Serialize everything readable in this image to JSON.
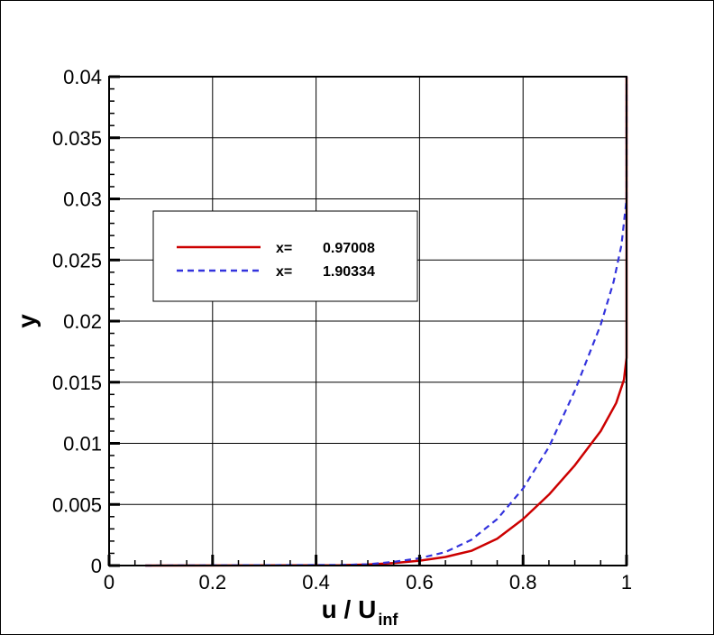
{
  "chart_data": {
    "type": "line",
    "xlabel_main": "u / U",
    "xlabel_sub": "inf",
    "ylabel": "y",
    "xlim": [
      0,
      1
    ],
    "ylim": [
      0,
      0.04
    ],
    "x_ticks": [
      "0",
      "0.2",
      "0.4",
      "0.6",
      "0.8",
      "1"
    ],
    "y_ticks": [
      "0",
      "0.005",
      "0.01",
      "0.015",
      "0.02",
      "0.025",
      "0.03",
      "0.035",
      "0.04"
    ],
    "grid": true,
    "legend_position": "upper-left",
    "series": [
      {
        "name": "x=",
        "value": "0.97008",
        "color": "#cc0000",
        "style": "solid",
        "points": [
          [
            0.07,
            0
          ],
          [
            0.45,
            3e-05
          ],
          [
            0.5,
            8e-05
          ],
          [
            0.55,
            0.0002
          ],
          [
            0.6,
            0.0004
          ],
          [
            0.65,
            0.0007
          ],
          [
            0.7,
            0.0012
          ],
          [
            0.75,
            0.0022
          ],
          [
            0.8,
            0.0038
          ],
          [
            0.85,
            0.0058
          ],
          [
            0.9,
            0.0082
          ],
          [
            0.95,
            0.011
          ],
          [
            0.98,
            0.0133
          ],
          [
            0.995,
            0.0152
          ],
          [
            1.0,
            0.017
          ],
          [
            1.0,
            0.025
          ],
          [
            1.0,
            0.04
          ]
        ]
      },
      {
        "name": "x=",
        "value": "1.90334",
        "color": "#3333dd",
        "style": "dashed",
        "points": [
          [
            0.07,
            0
          ],
          [
            0.45,
            5e-05
          ],
          [
            0.5,
            0.0001
          ],
          [
            0.55,
            0.0003
          ],
          [
            0.6,
            0.0006
          ],
          [
            0.65,
            0.0011
          ],
          [
            0.7,
            0.0021
          ],
          [
            0.75,
            0.0038
          ],
          [
            0.8,
            0.0063
          ],
          [
            0.85,
            0.0097
          ],
          [
            0.9,
            0.0143
          ],
          [
            0.95,
            0.0197
          ],
          [
            0.975,
            0.0232
          ],
          [
            0.99,
            0.0262
          ],
          [
            1.0,
            0.03
          ],
          [
            1.0,
            0.04
          ]
        ]
      }
    ]
  }
}
